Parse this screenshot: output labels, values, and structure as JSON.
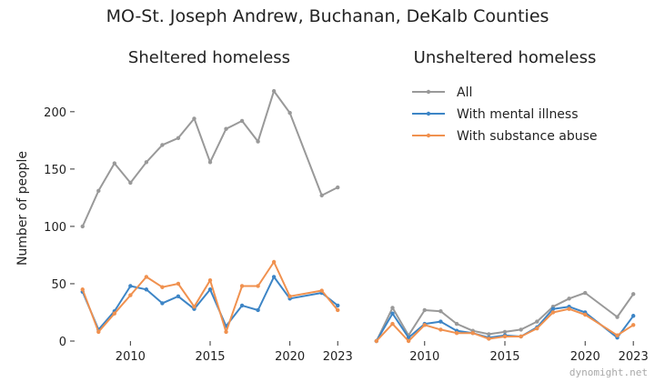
{
  "watermark": "dynomight.net",
  "chart_data": {
    "type": "line",
    "title": "MO-St. Joseph Andrew, Buchanan, DeKalb Counties",
    "ylabel": "Number of people",
    "legend_placement": "inside-right-panel-top",
    "grid": false,
    "colors": {
      "All": "#999999",
      "With mental illness": "#3d85c6",
      "With substance abuse": "#f0914f"
    },
    "x_ticks": [
      2010,
      2015,
      2020,
      2023
    ],
    "ylim": [
      0,
      230
    ],
    "legend": [
      "All",
      "With mental illness",
      "With substance abuse"
    ],
    "panels": [
      {
        "title": "Sheltered homeless",
        "y_ticks": [
          0,
          50,
          100,
          150,
          200
        ],
        "xlim": [
          2006.5,
          2023.5
        ],
        "series": [
          {
            "name": "All",
            "x": [
              2007,
              2008,
              2009,
              2010,
              2011,
              2012,
              2013,
              2014,
              2015,
              2016,
              2017,
              2018,
              2019,
              2020,
              2022,
              2023
            ],
            "y": [
              100,
              131,
              155,
              138,
              156,
              171,
              177,
              194,
              156,
              185,
              192,
              174,
              218,
              199,
              127,
              134
            ]
          },
          {
            "name": "With mental illness",
            "x": [
              2007,
              2008,
              2009,
              2010,
              2011,
              2012,
              2013,
              2014,
              2015,
              2016,
              2017,
              2018,
              2019,
              2020,
              2022,
              2023
            ],
            "y": [
              43,
              10,
              26,
              48,
              45,
              33,
              39,
              28,
              45,
              13,
              31,
              27,
              56,
              37,
              42,
              31
            ]
          },
          {
            "name": "With substance abuse",
            "x": [
              2007,
              2008,
              2009,
              2010,
              2011,
              2012,
              2013,
              2014,
              2015,
              2016,
              2017,
              2018,
              2019,
              2020,
              2022,
              2023
            ],
            "y": [
              45,
              8,
              24,
              40,
              56,
              47,
              50,
              30,
              53,
              8,
              48,
              48,
              69,
              39,
              44,
              27
            ]
          }
        ]
      },
      {
        "title": "Unsheltered homeless",
        "y_ticks": [],
        "xlim": [
          2006.5,
          2023.5
        ],
        "series": [
          {
            "name": "All",
            "x": [
              2007,
              2008,
              2009,
              2010,
              2011,
              2012,
              2013,
              2014,
              2015,
              2016,
              2017,
              2018,
              2019,
              2020,
              2022,
              2023
            ],
            "y": [
              0,
              29,
              5,
              27,
              26,
              15,
              9,
              6,
              8,
              10,
              17,
              30,
              37,
              42,
              21,
              41
            ]
          },
          {
            "name": "With mental illness",
            "x": [
              2007,
              2008,
              2009,
              2010,
              2011,
              2012,
              2013,
              2014,
              2015,
              2016,
              2017,
              2018,
              2019,
              2020,
              2022,
              2023
            ],
            "y": [
              0,
              24,
              3,
              15,
              17,
              9,
              7,
              3,
              5,
              4,
              12,
              28,
              30,
              25,
              3,
              22
            ]
          },
          {
            "name": "With substance abuse",
            "x": [
              2007,
              2008,
              2009,
              2010,
              2011,
              2012,
              2013,
              2014,
              2015,
              2016,
              2017,
              2018,
              2019,
              2020,
              2022,
              2023
            ],
            "y": [
              0,
              15,
              0,
              14,
              10,
              7,
              7,
              2,
              4,
              4,
              11,
              25,
              28,
              23,
              5,
              14
            ]
          }
        ]
      }
    ]
  }
}
